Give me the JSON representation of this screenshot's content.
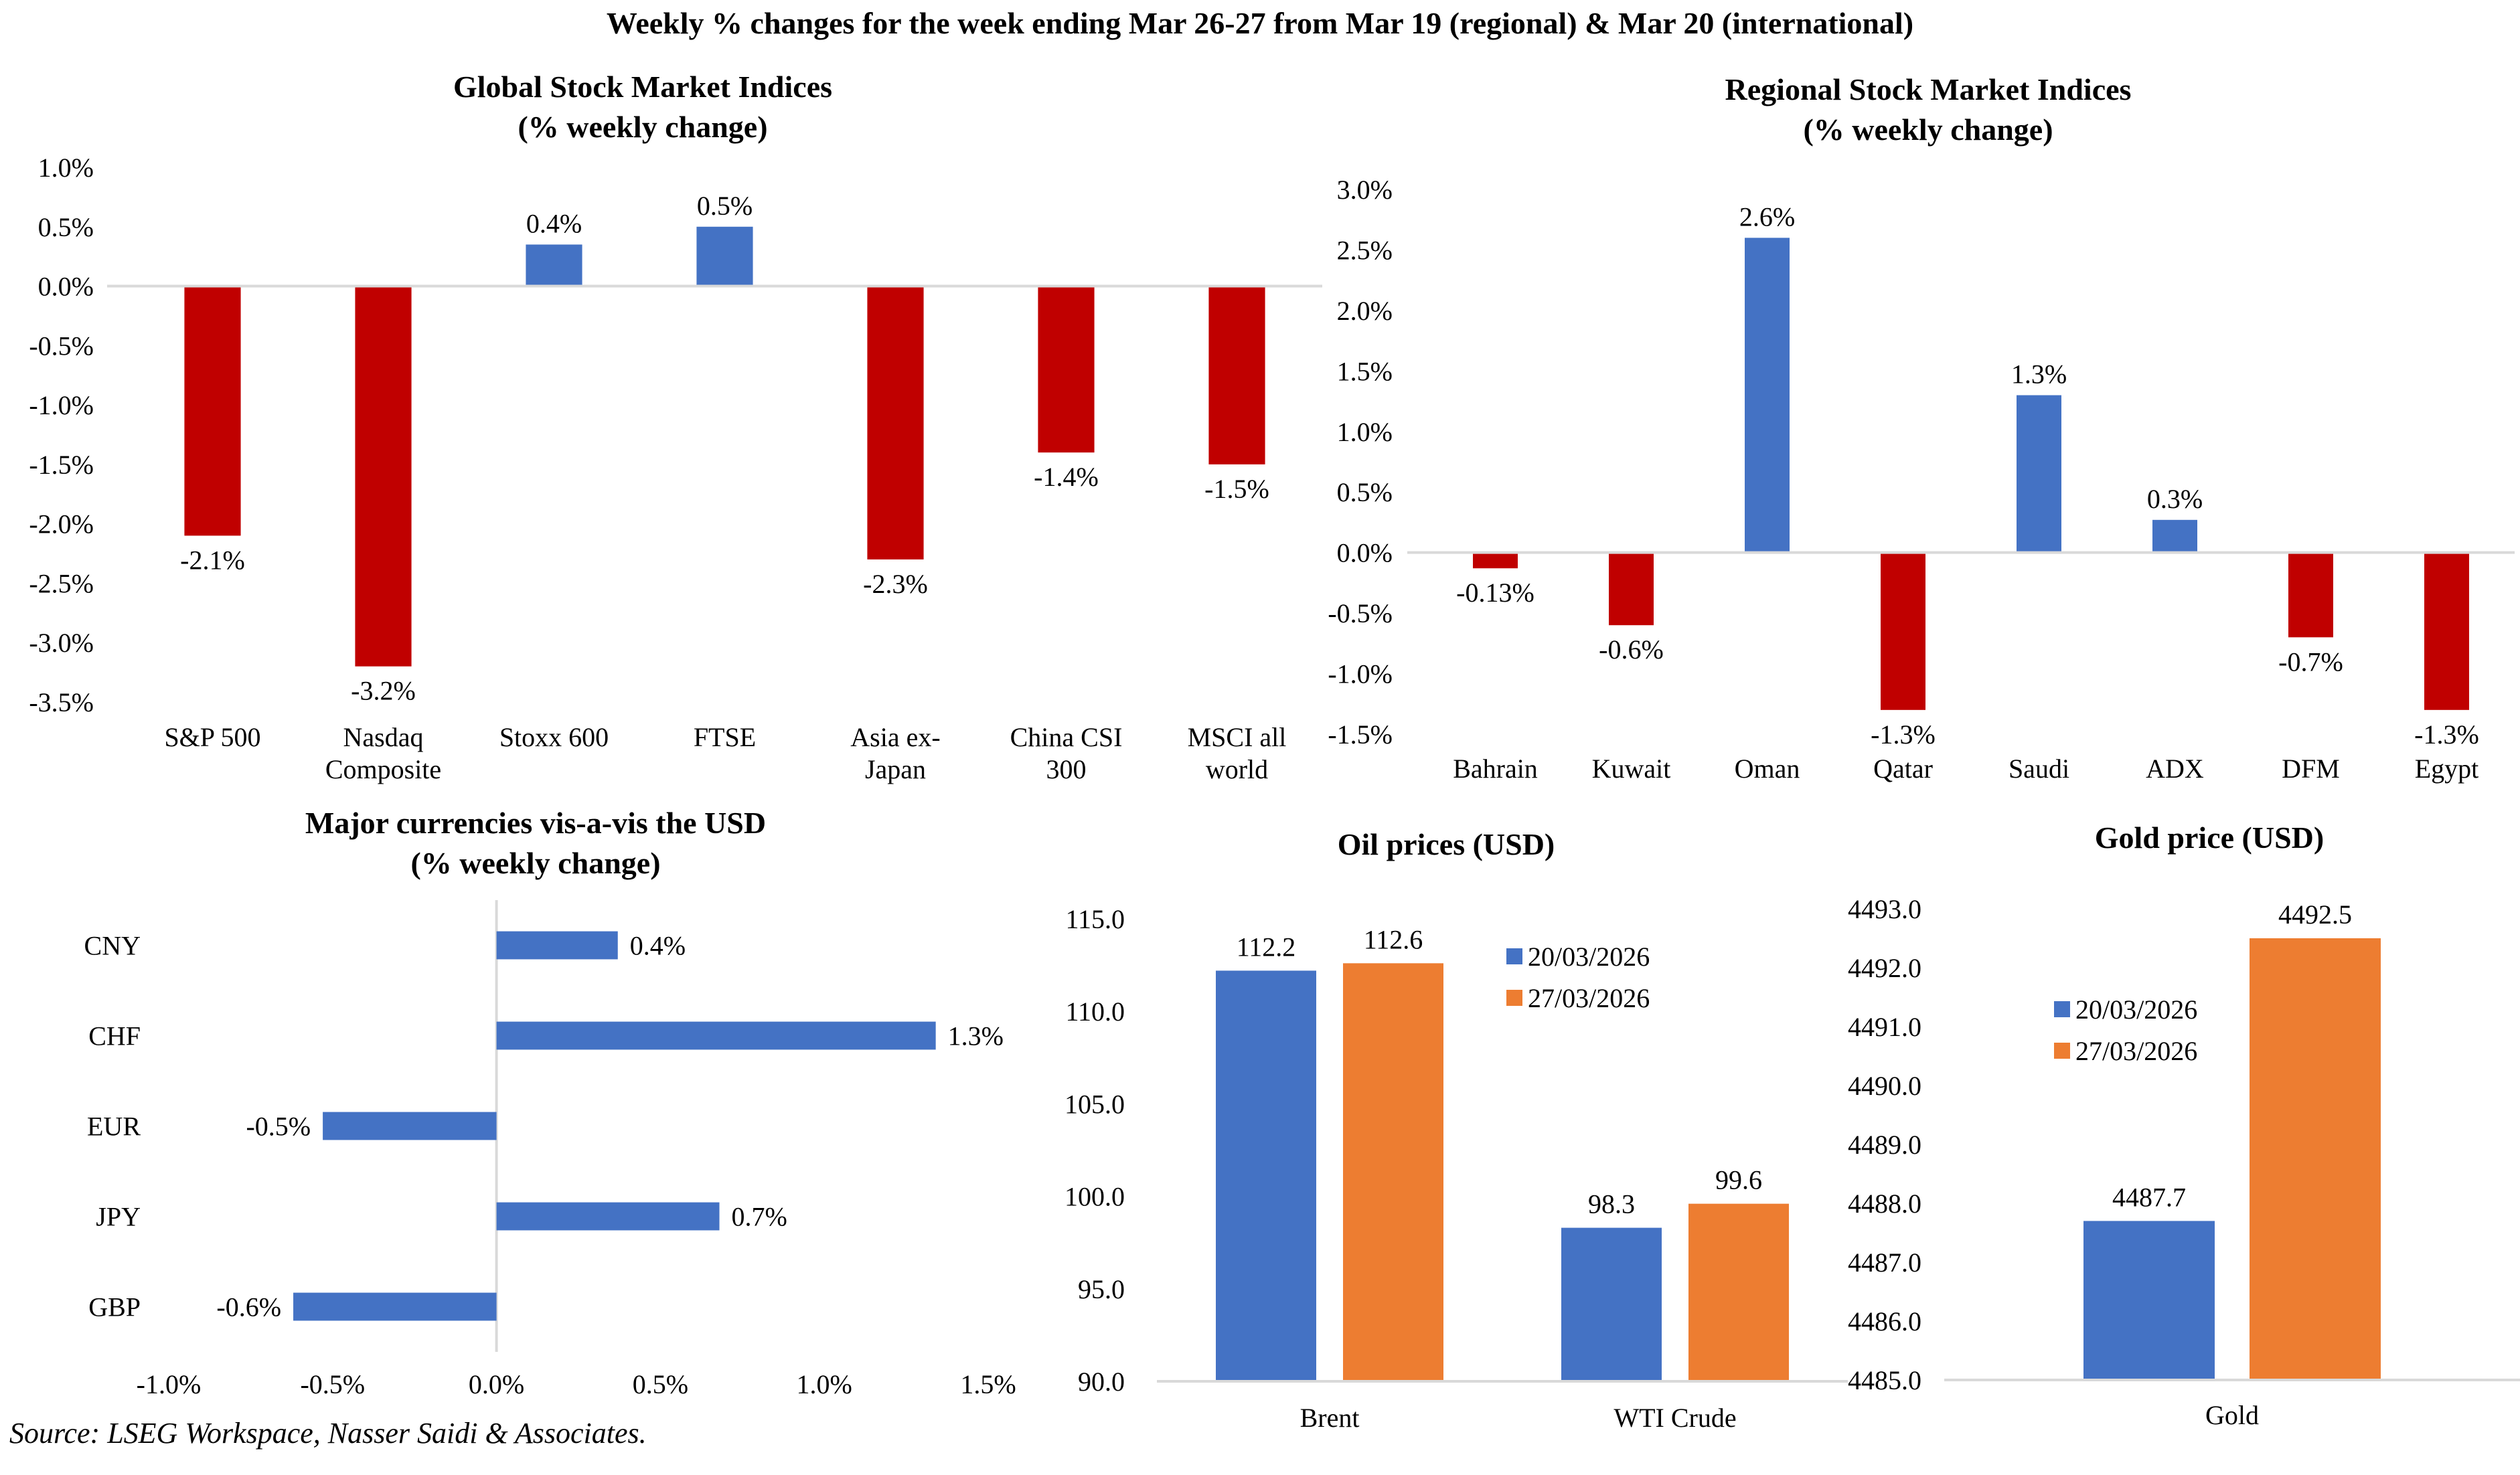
{
  "page": {
    "title": "Weekly % changes for the week ending Mar 26-27 from Mar 19 (regional) & Mar 20 (international)",
    "source": "Source: LSEG Workspace, Nasser Saidi & Associates."
  },
  "colors": {
    "positive": "#4472C4",
    "negative": "#C00000",
    "series1": "#4472C4",
    "series2": "#ED7D31",
    "axis": "#D9D9D9"
  },
  "chart_data": [
    {
      "id": "global",
      "type": "bar",
      "title_line1": "Global Stock Market Indices",
      "title_line2": "(% weekly change)",
      "categories": [
        [
          "S&P 500"
        ],
        [
          "Nasdaq",
          "Composite"
        ],
        [
          "Stoxx 600"
        ],
        [
          "FTSE"
        ],
        [
          "Asia ex-",
          "Japan"
        ],
        [
          "China CSI",
          "300"
        ],
        [
          "MSCI all",
          "world"
        ]
      ],
      "values": [
        -2.1,
        -3.2,
        0.35,
        0.5,
        -2.3,
        -1.4,
        -1.5
      ],
      "labels": [
        "-2.1%",
        "-3.2%",
        "0.4%",
        "0.5%",
        "-2.3%",
        "-1.4%",
        "-1.5%"
      ],
      "ylim": [
        -3.5,
        1.0
      ],
      "yticks": [
        "1.0%",
        "0.5%",
        "0.0%",
        "-0.5%",
        "-1.0%",
        "-1.5%",
        "-2.0%",
        "-2.5%",
        "-3.0%",
        "-3.5%"
      ],
      "ytick_values": [
        1.0,
        0.5,
        0.0,
        -0.5,
        -1.0,
        -1.5,
        -2.0,
        -2.5,
        -3.0,
        -3.5
      ],
      "grid": false,
      "legend": "none"
    },
    {
      "id": "regional",
      "type": "bar",
      "title_line1": "Regional Stock Market Indices",
      "title_line2": "(% weekly change)",
      "categories": [
        [
          "Bahrain"
        ],
        [
          "Kuwait"
        ],
        [
          "Oman"
        ],
        [
          "Qatar"
        ],
        [
          "Saudi"
        ],
        [
          "ADX"
        ],
        [
          "DFM"
        ],
        [
          "Egypt"
        ]
      ],
      "values": [
        -0.13,
        -0.6,
        2.6,
        -1.3,
        1.3,
        0.27,
        -0.7,
        -1.3
      ],
      "labels": [
        "-0.13%",
        "-0.6%",
        "2.6%",
        "-1.3%",
        "1.3%",
        "0.3%",
        "-0.7%",
        "-1.3%"
      ],
      "ylim": [
        -1.5,
        3.0
      ],
      "yticks": [
        "3.0%",
        "2.5%",
        "2.0%",
        "1.5%",
        "1.0%",
        "0.5%",
        "0.0%",
        "-0.5%",
        "-1.0%",
        "-1.5%"
      ],
      "ytick_values": [
        3.0,
        2.5,
        2.0,
        1.5,
        1.0,
        0.5,
        0.0,
        -0.5,
        -1.0,
        -1.5
      ],
      "grid": false,
      "legend": "none"
    },
    {
      "id": "currencies",
      "type": "bar",
      "orientation": "horizontal",
      "title_line1": "Major currencies vis-a-vis the USD",
      "title_line2": "(% weekly change)",
      "categories": [
        "CNY",
        "CHF",
        "EUR",
        "JPY",
        "GBP"
      ],
      "values": [
        0.37,
        1.34,
        -0.53,
        0.68,
        -0.62
      ],
      "labels": [
        "0.4%",
        "1.3%",
        "-0.5%",
        "0.7%",
        "-0.6%"
      ],
      "xlim": [
        -1.0,
        1.5
      ],
      "xticks": [
        "-1.0%",
        "-0.5%",
        "0.0%",
        "0.5%",
        "1.0%",
        "1.5%"
      ],
      "xtick_values": [
        -1.0,
        -0.5,
        0.0,
        0.5,
        1.0,
        1.5
      ],
      "grid": false,
      "legend": "none"
    },
    {
      "id": "oil",
      "type": "bar",
      "title_line1": "Oil prices (USD)",
      "categories": [
        "Brent",
        "WTI Crude"
      ],
      "series": [
        {
          "name": "20/03/2026",
          "values": [
            112.2,
            98.3
          ],
          "labels": [
            "112.2",
            "98.3"
          ]
        },
        {
          "name": "27/03/2026",
          "values": [
            112.6,
            99.6
          ],
          "labels": [
            "112.6",
            "99.6"
          ]
        }
      ],
      "ylim": [
        90.0,
        115.0
      ],
      "yticks": [
        "115.0",
        "110.0",
        "105.0",
        "100.0",
        "95.0",
        "90.0"
      ],
      "ytick_values": [
        115,
        110,
        105,
        100,
        95,
        90
      ],
      "grid": false,
      "legend": "top-right"
    },
    {
      "id": "gold",
      "type": "bar",
      "title_line1": "Gold price (USD)",
      "categories": [
        "Gold"
      ],
      "series": [
        {
          "name": "20/03/2026",
          "values": [
            4487.7
          ],
          "labels": [
            "4487.7"
          ]
        },
        {
          "name": "27/03/2026",
          "values": [
            4492.5
          ],
          "labels": [
            "4492.5"
          ]
        }
      ],
      "ylim": [
        4485.0,
        4493.0
      ],
      "yticks": [
        "4493.0",
        "4492.0",
        "4491.0",
        "4490.0",
        "4489.0",
        "4488.0",
        "4487.0",
        "4486.0",
        "4485.0"
      ],
      "ytick_values": [
        4493,
        4492,
        4491,
        4490,
        4489,
        4488,
        4487,
        4486,
        4485
      ],
      "grid": false,
      "legend": "top-left"
    }
  ]
}
